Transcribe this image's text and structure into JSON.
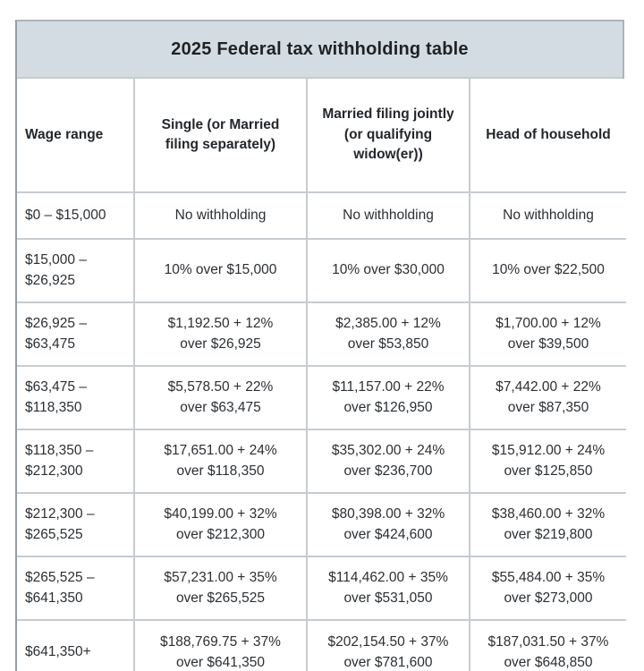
{
  "title": "2025 Federal tax withholding table",
  "colors": {
    "title_bar_bg": "#d3dce2",
    "cell_bg": "#ffffff",
    "grid_border": "#c6ccd0",
    "outer_border": "#aeb4b9",
    "text": "#2b2f33"
  },
  "table": {
    "columns": [
      [
        "Wage range"
      ],
      [
        "Single (or Married",
        "filing separately)"
      ],
      [
        "Married filing jointly",
        "(or qualifying",
        "widow(er))"
      ],
      [
        "Head of household"
      ]
    ],
    "rows": [
      {
        "cells": [
          [
            "$0 – $15,000"
          ],
          [
            "No withholding"
          ],
          [
            "No withholding"
          ],
          [
            "No withholding"
          ]
        ]
      },
      {
        "cells": [
          [
            "$15,000 –",
            "$26,925"
          ],
          [
            "10% over $15,000"
          ],
          [
            "10% over $30,000"
          ],
          [
            "10% over $22,500"
          ]
        ]
      },
      {
        "cells": [
          [
            "$26,925 –",
            "$63,475"
          ],
          [
            "$1,192.50 + 12%",
            "over $26,925"
          ],
          [
            "$2,385.00 + 12%",
            "over $53,850"
          ],
          [
            "$1,700.00 + 12%",
            "over $39,500"
          ]
        ]
      },
      {
        "cells": [
          [
            "$63,475 –",
            "$118,350"
          ],
          [
            "$5,578.50 + 22%",
            "over $63,475"
          ],
          [
            "$11,157.00 + 22%",
            "over $126,950"
          ],
          [
            "$7,442.00 + 22%",
            "over $87,350"
          ]
        ]
      },
      {
        "cells": [
          [
            "$118,350 –",
            "$212,300"
          ],
          [
            "$17,651.00 + 24%",
            "over $118,350"
          ],
          [
            "$35,302.00 + 24%",
            "over $236,700"
          ],
          [
            "$15,912.00 + 24%",
            "over $125,850"
          ]
        ]
      },
      {
        "cells": [
          [
            "$212,300 –",
            "$265,525"
          ],
          [
            "$40,199.00 + 32%",
            "over $212,300"
          ],
          [
            "$80,398.00 + 32%",
            "over $424,600"
          ],
          [
            "$38,460.00 + 32%",
            "over $219,800"
          ]
        ]
      },
      {
        "cells": [
          [
            "$265,525 –",
            "$641,350"
          ],
          [
            "$57,231.00 + 35%",
            "over $265,525"
          ],
          [
            "$114,462.00 + 35%",
            "over $531,050"
          ],
          [
            "$55,484.00 + 35%",
            "over $273,000"
          ]
        ]
      },
      {
        "cells": [
          [
            "$641,350+"
          ],
          [
            "$188,769.75 + 37%",
            "over $641,350"
          ],
          [
            "$202,154.50 + 37%",
            "over $781,600"
          ],
          [
            "$187,031.50 + 37%",
            "over $648,850"
          ]
        ]
      }
    ]
  },
  "chart_data": {
    "type": "table",
    "title": "2025 Federal tax withholding table",
    "columns": [
      "Wage range",
      "Single (or Married filing separately)",
      "Married filing jointly (or qualifying widow(er))",
      "Head of household"
    ],
    "rows": [
      [
        "$0 – $15,000",
        "No withholding",
        "No withholding",
        "No withholding"
      ],
      [
        "$15,000 – $26,925",
        "10% over $15,000",
        "10% over $30,000",
        "10% over $22,500"
      ],
      [
        "$26,925 – $63,475",
        "$1,192.50 + 12% over $26,925",
        "$2,385.00 + 12% over $53,850",
        "$1,700.00 + 12% over $39,500"
      ],
      [
        "$63,475 – $118,350",
        "$5,578.50 + 22% over $63,475",
        "$11,157.00 + 22% over $126,950",
        "$7,442.00 + 22% over $87,350"
      ],
      [
        "$118,350 – $212,300",
        "$17,651.00 + 24% over $118,350",
        "$35,302.00 + 24% over $236,700",
        "$15,912.00 + 24% over $125,850"
      ],
      [
        "$212,300 – $265,525",
        "$40,199.00 + 32% over $212,300",
        "$80,398.00 + 32% over $424,600",
        "$38,460.00 + 32% over $219,800"
      ],
      [
        "$265,525 – $641,350",
        "$57,231.00 + 35% over $265,525",
        "$114,462.00 + 35% over $531,050",
        "$55,484.00 + 35% over $273,000"
      ],
      [
        "$641,350+",
        "$188,769.75 + 37% over $641,350",
        "$202,154.50 + 37% over $781,600",
        "$187,031.50 + 37% over $648,850"
      ]
    ]
  }
}
